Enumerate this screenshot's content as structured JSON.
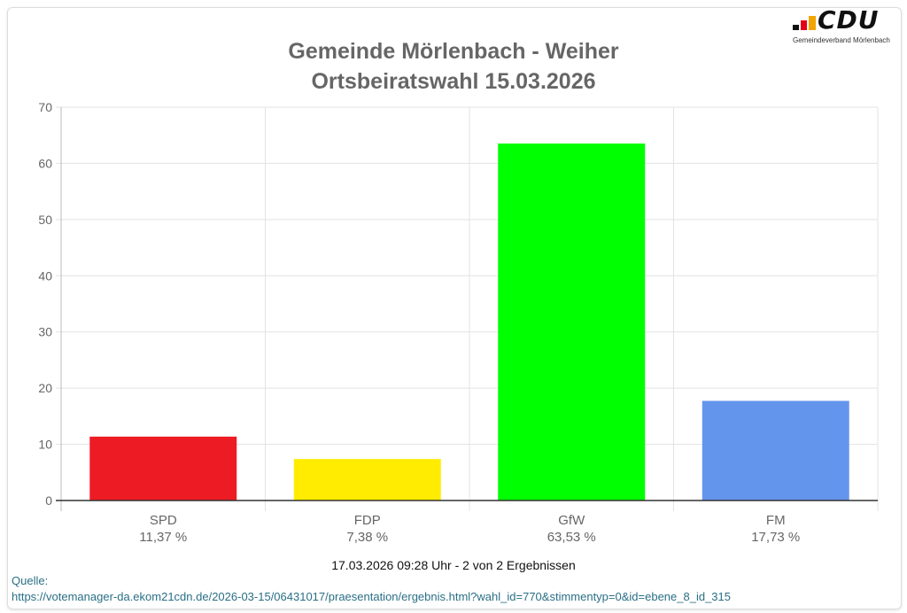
{
  "logo": {
    "text": "CDU",
    "subtitle": "Gemeindeverband Mörlenbach",
    "colors": [
      "#111111",
      "#e2001a",
      "#f0a500"
    ]
  },
  "chart_data": {
    "type": "bar",
    "title": [
      "Gemeinde Mörlenbach - Weiher",
      "Ortsbeiratswahl 15.03.2026"
    ],
    "categories": [
      "SPD",
      "FDP",
      "GfW",
      "FM"
    ],
    "values": [
      11.37,
      7.38,
      63.53,
      17.73
    ],
    "value_labels": [
      "11,37 %",
      "7,38 %",
      "63,53 %",
      "17,73 %"
    ],
    "colors": [
      "#ed1c24",
      "#ffec00",
      "#00ff00",
      "#6495ed"
    ],
    "ylim": [
      0,
      70
    ],
    "yticks": [
      0,
      10,
      20,
      30,
      40,
      50,
      60,
      70
    ],
    "grid": true
  },
  "footer": {
    "timestamp": "17.03.2026 09:28 Uhr - 2 von 2 Ergebnissen",
    "source_label": "Quelle:",
    "source_url": "https://votemanager-da.ekom21cdn.de/2026-03-15/06431017/praesentation/ergebnis.html?wahl_id=770&stimmentyp=0&id=ebene_8_id_315"
  }
}
